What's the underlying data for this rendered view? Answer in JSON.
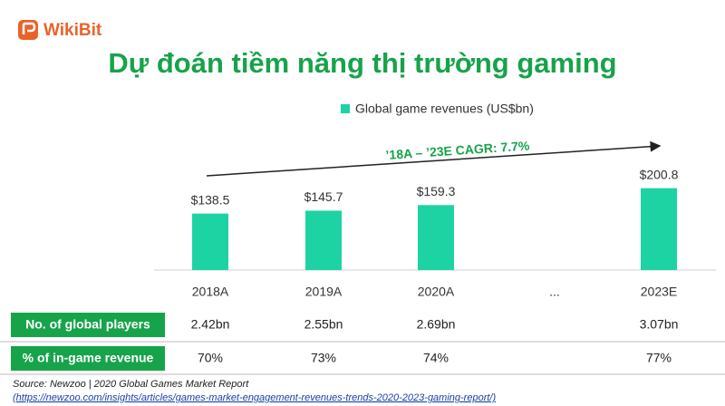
{
  "logo": "WikiBit",
  "title": "Dự đoán tiềm năng thị trường gaming",
  "chart_data": {
    "type": "bar",
    "categories": [
      "2018A",
      "2019A",
      "2020A",
      "...",
      "2023E"
    ],
    "series": [
      {
        "name": "Global game revenues (US$bn)",
        "color": "#1ed3a3",
        "values": [
          138.5,
          145.7,
          159.3,
          null,
          200.8
        ],
        "value_labels": [
          "$138.5",
          "$145.7",
          "$159.3",
          null,
          "$200.8"
        ]
      }
    ],
    "annotation": "’18A – ’23E CAGR: 7.7%"
  },
  "table": {
    "rows": [
      {
        "label": "No. of global players",
        "values": [
          "2.42bn",
          "2.55bn",
          "2.69bn",
          null,
          "3.07bn"
        ]
      },
      {
        "label": "% of in-game revenue",
        "values": [
          "70%",
          "73%",
          "74%",
          null,
          "77%"
        ]
      }
    ]
  },
  "source": {
    "text": "Source: Newzoo | 2020 Global Games Market Report",
    "link": "(https://newzoo.com/insights/articles/games-market-engagement-revenues-trends-2020-2023-gaming-report/)"
  }
}
